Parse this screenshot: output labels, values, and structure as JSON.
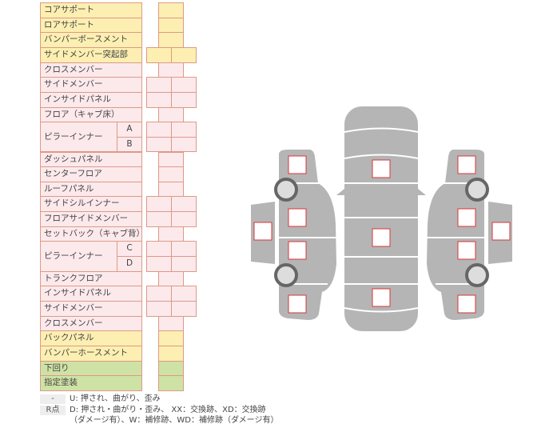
{
  "colors": {
    "yellow": "#fcefb1",
    "pink": "#fce9ec",
    "green": "#cfe2a5",
    "border": "#dd9a86",
    "body": "#b5b5b5",
    "mark": "#d9353a"
  },
  "table": {
    "rows": [
      {
        "label": "コアサポート",
        "color": "yellow",
        "boxes": 1
      },
      {
        "label": "ロアサポート",
        "color": "yellow",
        "boxes": 1
      },
      {
        "label": "バンパーボースメント",
        "color": "yellow",
        "boxes": 1
      },
      {
        "label": "サイドメンバー突起部",
        "color": "yellow",
        "boxes": 2
      },
      {
        "label": "クロスメンバー",
        "color": "pink",
        "boxes": 1
      },
      {
        "label": "サイドメンバー",
        "color": "pink",
        "boxes": 2
      },
      {
        "label": "インサイドパネル",
        "color": "pink",
        "boxes": 2
      },
      {
        "label": "フロア（キャブ床）",
        "color": "pink",
        "boxes": 1
      },
      {
        "label": "ピラーインナー",
        "subs": [
          "A",
          "B"
        ],
        "color": "pink",
        "boxes": 2
      },
      {
        "label": "ダッシュパネル",
        "color": "pink",
        "boxes": 1
      },
      {
        "label": "センターフロア",
        "color": "pink",
        "boxes": 1
      },
      {
        "label": "ルーフパネル",
        "color": "pink",
        "boxes": 1
      },
      {
        "label": "サイドシルインナー",
        "color": "pink",
        "boxes": 2
      },
      {
        "label": "フロアサイドメンバー",
        "color": "pink",
        "boxes": 2
      },
      {
        "label": "セットバック（キャブ背）",
        "color": "pink",
        "boxes": 1
      },
      {
        "label": "ピラーインナー",
        "subs": [
          "C",
          "D"
        ],
        "color": "pink",
        "boxes": 2
      },
      {
        "label": "トランクフロア",
        "color": "pink",
        "boxes": 1
      },
      {
        "label": "インサイドパネル",
        "color": "pink",
        "boxes": 2
      },
      {
        "label": "サイドメンバー",
        "color": "pink",
        "boxes": 2
      },
      {
        "label": "クロスメンバー",
        "color": "pink",
        "boxes": 1
      },
      {
        "label": "バックパネル",
        "color": "yellow",
        "boxes": 1
      },
      {
        "label": "バンパーホースメント",
        "color": "yellow",
        "boxes": 1
      },
      {
        "label": "下回り",
        "color": "green",
        "boxes": 1
      },
      {
        "label": "指定塗装",
        "color": "green",
        "boxes": 1
      }
    ]
  },
  "legend": {
    "items": [
      {
        "key": "-",
        "text": "U: 押され、曲がり、歪み"
      },
      {
        "key": "R点",
        "text": "D: 押され・曲がり・歪み、 XX：交換跡、XD：交換跡",
        "text2": "（ダメージ有）、W：補修跡、WD：補修跡（ダメージ有）"
      }
    ]
  }
}
